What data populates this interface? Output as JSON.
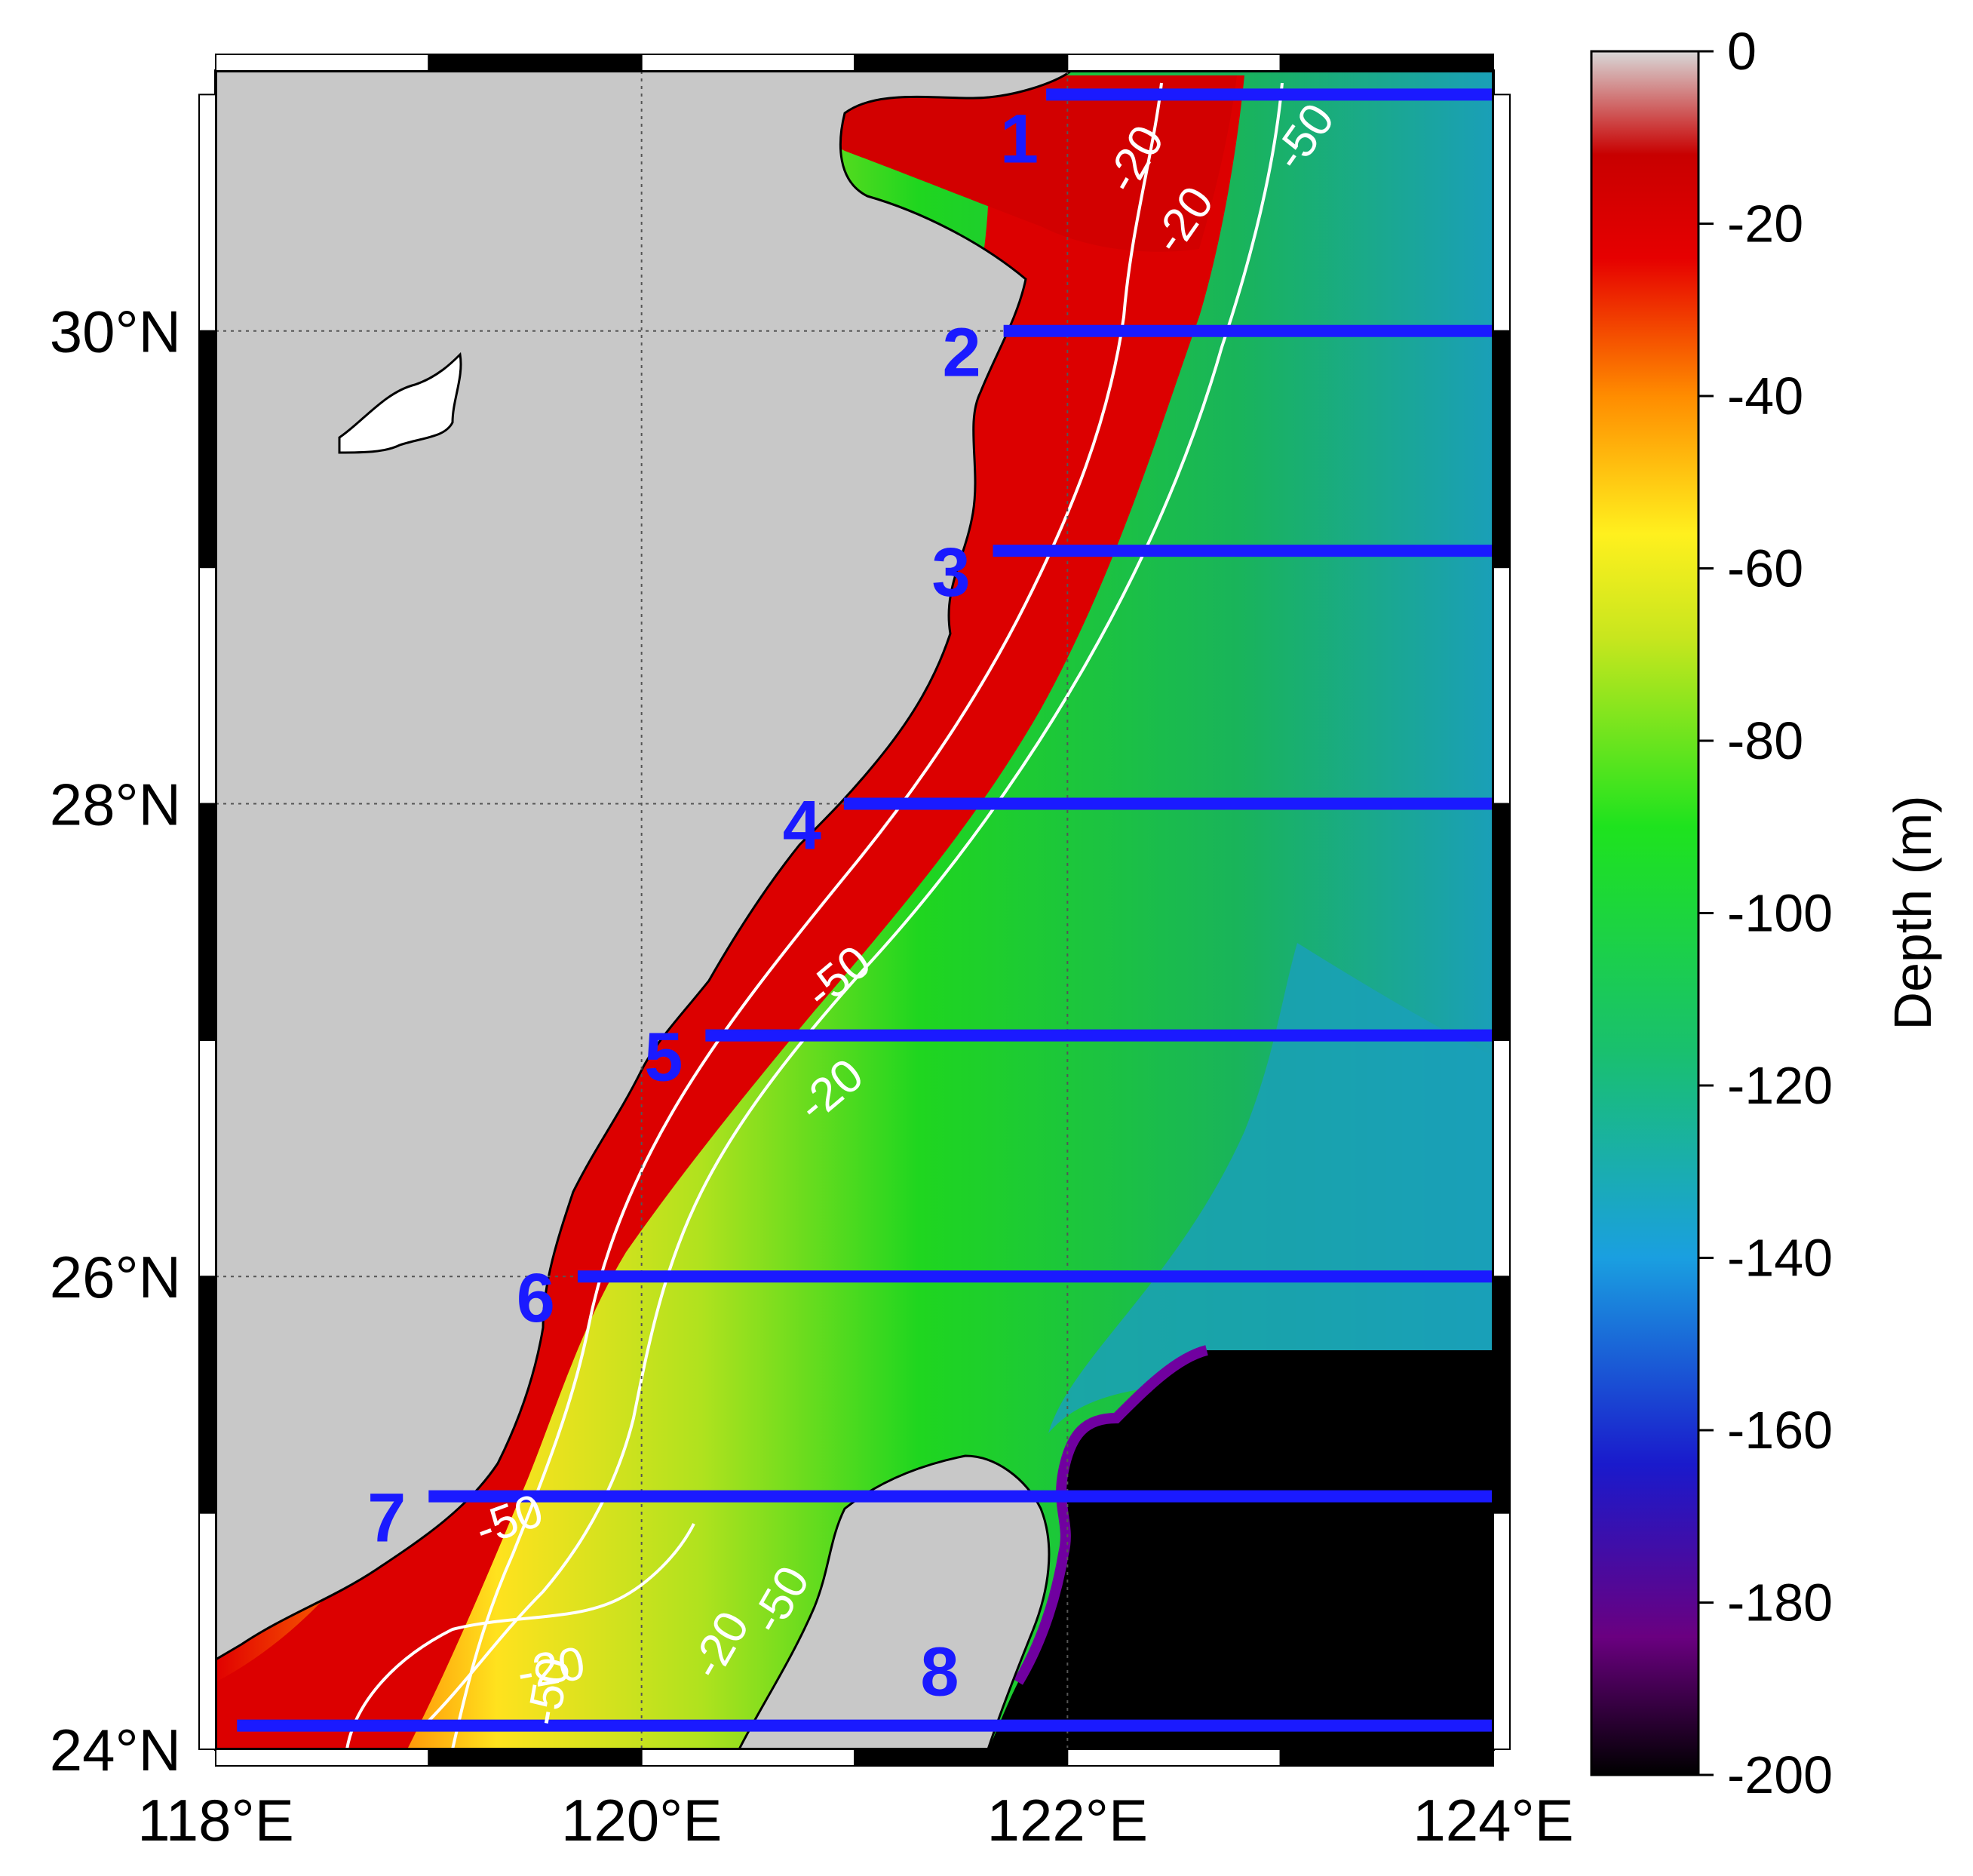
{
  "map": {
    "lat_labels": [
      "30°N",
      "28°N",
      "26°N",
      "24°N"
    ],
    "lon_labels": [
      "118°E",
      "120°E",
      "122°E",
      "124°E"
    ],
    "lon_range": [
      118,
      124
    ],
    "lat_range": [
      24,
      31.1
    ],
    "sections": [
      {
        "label": "1",
        "lat": 31.0,
        "lon_start": 121.9,
        "lon_end": 124.0
      },
      {
        "label": "2",
        "lat": 30.0,
        "lon_start": 121.7,
        "lon_end": 124.0
      },
      {
        "label": "3",
        "lat": 29.07,
        "lon_start": 121.65,
        "lon_end": 124.0
      },
      {
        "label": "4",
        "lat": 28.0,
        "lon_start": 120.95,
        "lon_end": 124.0
      },
      {
        "label": "5",
        "lat": 27.02,
        "lon_start": 120.3,
        "lon_end": 124.0
      },
      {
        "label": "6",
        "lat": 26.0,
        "lon_start": 119.7,
        "lon_end": 124.0
      },
      {
        "label": "7",
        "lat": 25.07,
        "lon_start": 119.0,
        "lon_end": 124.0
      },
      {
        "label": "8",
        "lat": 24.1,
        "lon_start": 118.1,
        "lon_end": 124.0
      }
    ],
    "contour_labels": [
      "-20",
      "-50",
      "-20",
      "-50",
      "-20",
      "-50",
      "-20",
      "-50",
      "-20",
      "-50",
      "-20"
    ]
  },
  "colorbar": {
    "title": "Depth (m)",
    "ticks": [
      "0",
      "-20",
      "-40",
      "-60",
      "-80",
      "-100",
      "-120",
      "-140",
      "-160",
      "-180",
      "-200"
    ],
    "range": [
      -200,
      0
    ],
    "colors": [
      "#000000",
      "#6a0080",
      "#1a1acc",
      "#1a9fe0",
      "#19c06e",
      "#1ee31e",
      "#c8e61e",
      "#fff01e",
      "#ff8c00",
      "#e60000",
      "#c80000",
      "#cfcfcf"
    ]
  },
  "colors": {
    "land": "#c8c8c8",
    "section_line": "#1a1aff",
    "contour": "#ffffff",
    "deep": "#000000"
  }
}
